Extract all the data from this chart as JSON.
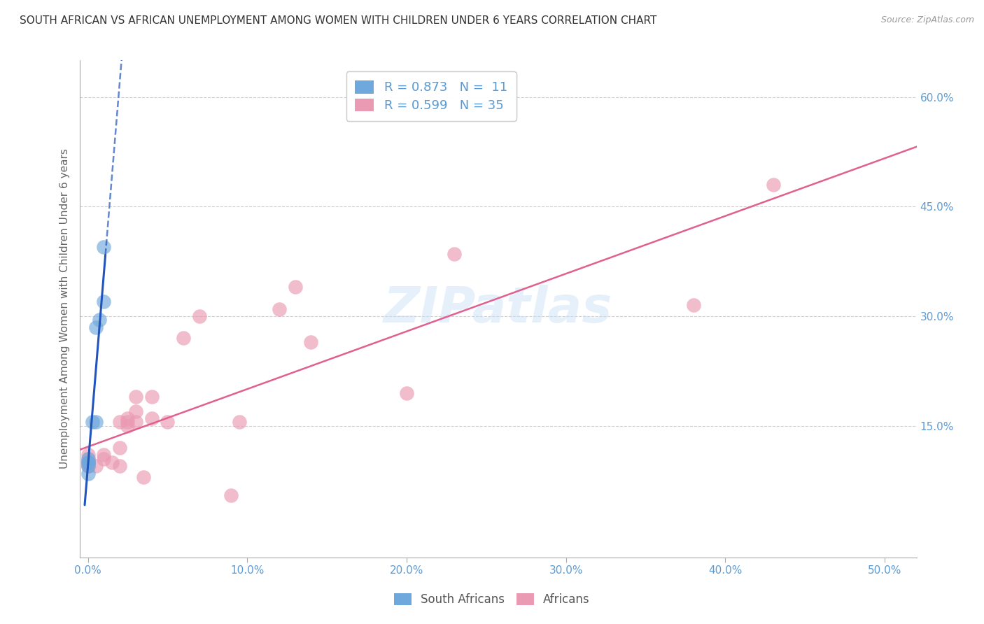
{
  "title": "SOUTH AFRICAN VS AFRICAN UNEMPLOYMENT AMONG WOMEN WITH CHILDREN UNDER 6 YEARS CORRELATION CHART",
  "source": "Source: ZipAtlas.com",
  "ylabel": "Unemployment Among Women with Children Under 6 years",
  "xlabel_ticks": [
    "0.0%",
    "10.0%",
    "20.0%",
    "30.0%",
    "40.0%",
    "50.0%"
  ],
  "xlabel_vals": [
    0.0,
    10.0,
    20.0,
    30.0,
    40.0,
    50.0
  ],
  "ylabel_ticks": [
    "15.0%",
    "30.0%",
    "45.0%",
    "60.0%"
  ],
  "ylabel_vals": [
    15.0,
    30.0,
    45.0,
    60.0
  ],
  "xlim": [
    -0.5,
    52.0
  ],
  "ylim": [
    -3.0,
    65.0
  ],
  "blue_color": "#6fa8dc",
  "pink_color": "#ea9ab2",
  "blue_line_color": "#2255bb",
  "pink_line_color": "#e06090",
  "legend_blue_R": "R = 0.873",
  "legend_blue_N": "N =  11",
  "legend_pink_R": "R = 0.599",
  "legend_pink_N": "N = 35",
  "legend_label_blue": "South Africans",
  "legend_label_pink": "Africans",
  "south_africans_x": [
    0.0,
    0.0,
    0.0,
    0.0,
    0.0,
    0.3,
    0.5,
    0.5,
    0.7,
    1.0,
    1.0
  ],
  "south_africans_y": [
    8.5,
    9.5,
    10.0,
    10.0,
    10.5,
    15.5,
    15.5,
    28.5,
    29.5,
    32.0,
    39.5
  ],
  "africans_x": [
    0.0,
    0.0,
    0.0,
    0.0,
    0.0,
    0.0,
    0.0,
    0.5,
    1.0,
    1.0,
    1.5,
    2.0,
    2.0,
    2.0,
    2.5,
    2.5,
    2.5,
    3.0,
    3.0,
    3.0,
    3.5,
    4.0,
    4.0,
    5.0,
    6.0,
    7.0,
    9.0,
    9.5,
    12.0,
    13.0,
    14.0,
    20.0,
    23.0,
    38.0,
    43.0
  ],
  "africans_y": [
    9.5,
    9.5,
    10.0,
    10.0,
    10.0,
    10.5,
    11.0,
    9.5,
    10.5,
    11.0,
    10.0,
    9.5,
    12.0,
    15.5,
    15.0,
    15.5,
    16.0,
    15.5,
    17.0,
    19.0,
    8.0,
    16.0,
    19.0,
    15.5,
    27.0,
    30.0,
    5.5,
    15.5,
    31.0,
    34.0,
    26.5,
    19.5,
    38.5,
    31.5,
    48.0
  ],
  "watermark": "ZIPatlas",
  "title_fontsize": 11,
  "source_fontsize": 9,
  "tick_color": "#5b9bd5",
  "grid_color": "#d0d0d0",
  "grid_style": "--",
  "axis_color": "#aaaaaa"
}
